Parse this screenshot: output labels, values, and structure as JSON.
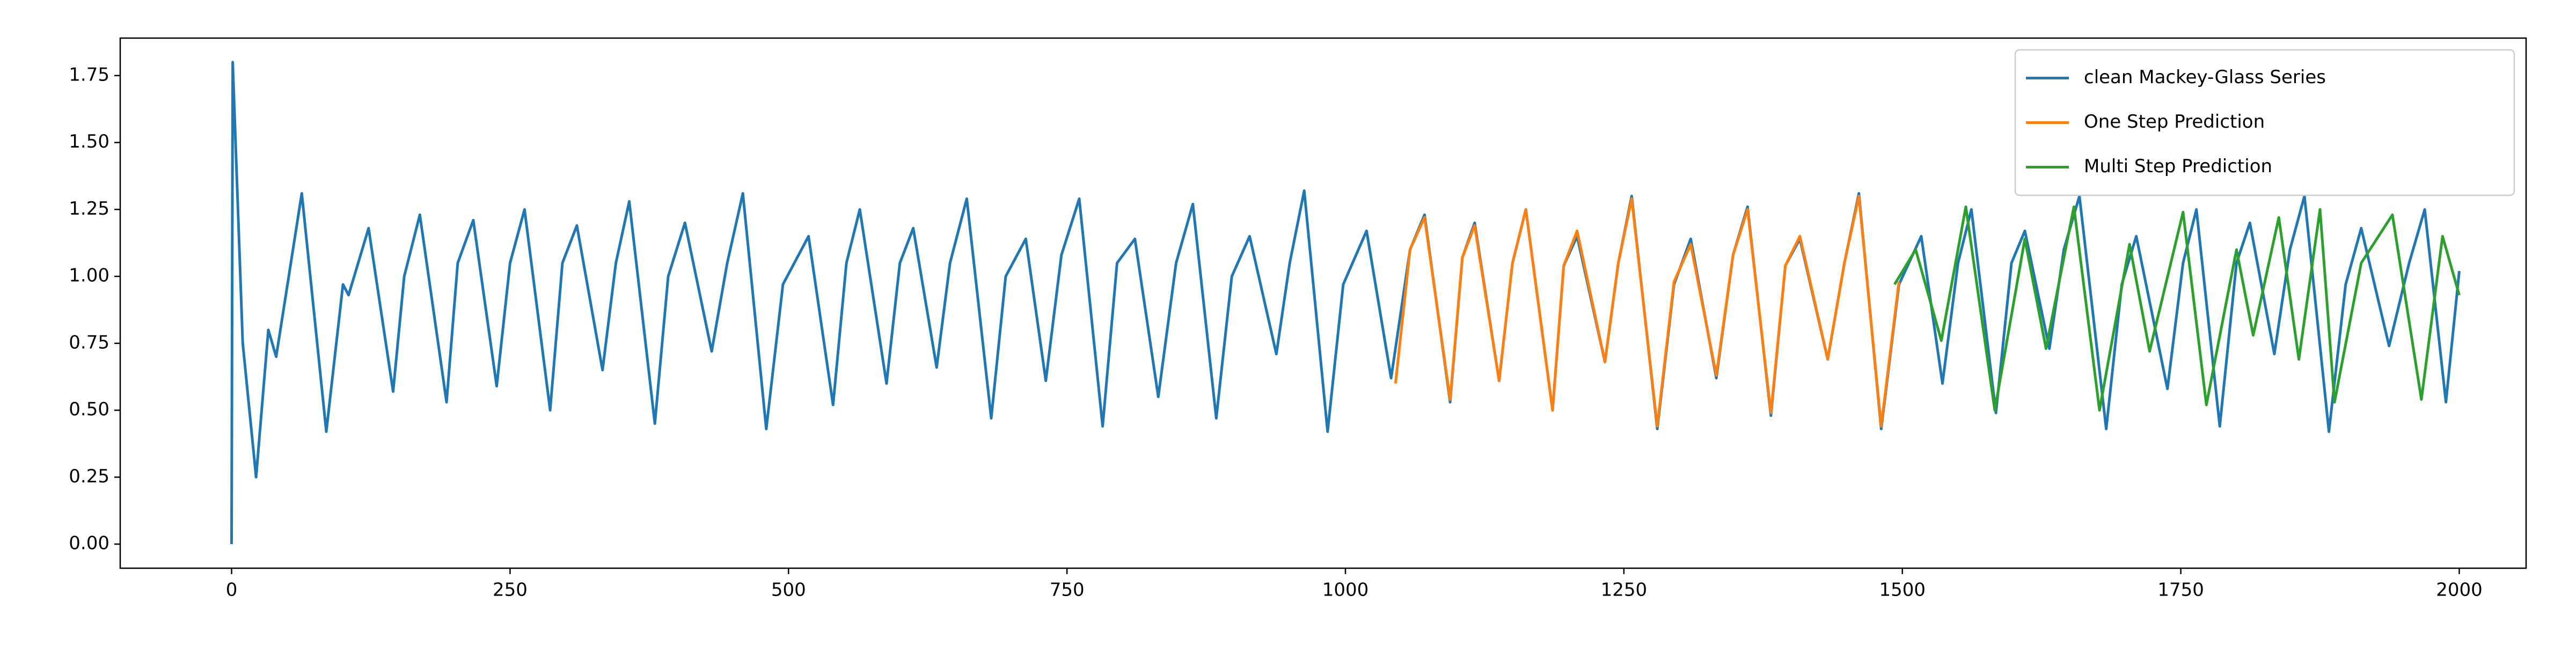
{
  "chart_data": {
    "type": "line",
    "grid": false,
    "legend": "upper right",
    "xlim": [
      -100,
      2060
    ],
    "ylim": [
      -0.09,
      1.89
    ],
    "xticks": [
      0,
      250,
      500,
      750,
      1000,
      1250,
      1500,
      1750,
      2000
    ],
    "yticks": [
      {
        "value": 0,
        "label": "0.00"
      },
      0.25,
      {
        "value": 0.5,
        "label": "0.50"
      },
      0.75,
      {
        "value": 1,
        "label": "1.00"
      },
      1.25,
      {
        "value": 1.5,
        "label": "1.50"
      },
      1.75
    ],
    "series": [
      {
        "name": "clean Mackey-Glass Series",
        "color": "#1f77b4",
        "x": [
          0,
          1,
          10,
          22,
          33,
          40,
          63,
          85,
          100,
          105,
          123,
          145,
          155,
          169,
          193,
          203,
          217,
          238,
          250,
          263,
          286,
          297,
          310,
          333,
          345,
          357,
          380,
          392,
          407,
          431,
          445,
          459,
          480,
          495,
          518,
          540,
          552,
          564,
          588,
          600,
          612,
          633,
          645,
          660,
          682,
          695,
          713,
          731,
          745,
          761,
          782,
          795,
          811,
          832,
          848,
          863,
          884,
          898,
          914,
          938,
          950,
          963,
          984,
          998,
          1019,
          1041,
          1058,
          1071,
          1094,
          1105,
          1116,
          1138,
          1150,
          1162,
          1186,
          1196,
          1208,
          1233,
          1245,
          1257,
          1280,
          1295,
          1310,
          1333,
          1348,
          1361,
          1382,
          1395,
          1408,
          1433,
          1448,
          1461,
          1481,
          1497,
          1517,
          1536,
          1550,
          1562,
          1584,
          1598,
          1610,
          1632,
          1645,
          1659,
          1683,
          1697,
          1710,
          1738,
          1752,
          1764,
          1785,
          1800,
          1812,
          1834,
          1848,
          1861,
          1883,
          1898,
          1912,
          1937,
          1955,
          1969,
          1988,
          2000
        ],
        "values": [
          0,
          1.8,
          0.75,
          0.25,
          0.8,
          0.7,
          1.31,
          0.42,
          0.97,
          0.93,
          1.18,
          0.57,
          1.0,
          1.23,
          0.53,
          1.05,
          1.21,
          0.59,
          1.05,
          1.25,
          0.5,
          1.05,
          1.19,
          0.65,
          1.05,
          1.28,
          0.45,
          1.0,
          1.2,
          0.72,
          1.05,
          1.31,
          0.43,
          0.97,
          1.15,
          0.52,
          1.05,
          1.25,
          0.6,
          1.05,
          1.18,
          0.66,
          1.05,
          1.29,
          0.47,
          1.0,
          1.14,
          0.61,
          1.08,
          1.29,
          0.44,
          1.05,
          1.14,
          0.55,
          1.05,
          1.27,
          0.47,
          1.0,
          1.15,
          0.71,
          1.05,
          1.32,
          0.42,
          0.97,
          1.17,
          0.62,
          1.1,
          1.23,
          0.53,
          1.07,
          1.2,
          0.61,
          1.05,
          1.25,
          0.5,
          1.04,
          1.15,
          0.68,
          1.05,
          1.3,
          0.43,
          0.97,
          1.14,
          0.62,
          1.08,
          1.26,
          0.48,
          1.04,
          1.14,
          0.69,
          1.05,
          1.31,
          0.43,
          0.97,
          1.15,
          0.6,
          1.05,
          1.25,
          0.49,
          1.05,
          1.17,
          0.73,
          1.1,
          1.3,
          0.43,
          0.97,
          1.15,
          0.58,
          1.05,
          1.25,
          0.44,
          1.05,
          1.2,
          0.71,
          1.1,
          1.3,
          0.42,
          0.97,
          1.18,
          0.74,
          1.05,
          1.25,
          0.53,
          1.02
        ]
      },
      {
        "name": "One Step Prediction",
        "color": "#ff7f0e",
        "x": [
          1045,
          1058,
          1071,
          1094,
          1105,
          1116,
          1138,
          1150,
          1162,
          1186,
          1196,
          1208,
          1233,
          1245,
          1257,
          1280,
          1295,
          1310,
          1333,
          1348,
          1361,
          1382,
          1395,
          1408,
          1433,
          1448,
          1461,
          1481,
          1497
        ],
        "values": [
          0.6,
          1.1,
          1.22,
          0.54,
          1.07,
          1.19,
          0.61,
          1.05,
          1.25,
          0.5,
          1.04,
          1.17,
          0.68,
          1.05,
          1.29,
          0.44,
          0.98,
          1.12,
          0.63,
          1.08,
          1.25,
          0.49,
          1.04,
          1.15,
          0.69,
          1.05,
          1.3,
          0.44,
          0.98
        ]
      },
      {
        "name": "Multi Step Prediction",
        "color": "#2ca02c",
        "x": [
          1493,
          1512,
          1535,
          1557,
          1583,
          1610,
          1629,
          1654,
          1677,
          1704,
          1722,
          1752,
          1773,
          1800,
          1815,
          1838,
          1856,
          1875,
          1888,
          1912,
          1940,
          1966,
          1985,
          2000
        ],
        "values": [
          0.97,
          1.1,
          0.76,
          1.26,
          0.5,
          1.14,
          0.73,
          1.26,
          0.5,
          1.12,
          0.72,
          1.24,
          0.52,
          1.1,
          0.78,
          1.22,
          0.69,
          1.25,
          0.53,
          1.05,
          1.23,
          0.54,
          1.15,
          0.93
        ]
      }
    ]
  }
}
